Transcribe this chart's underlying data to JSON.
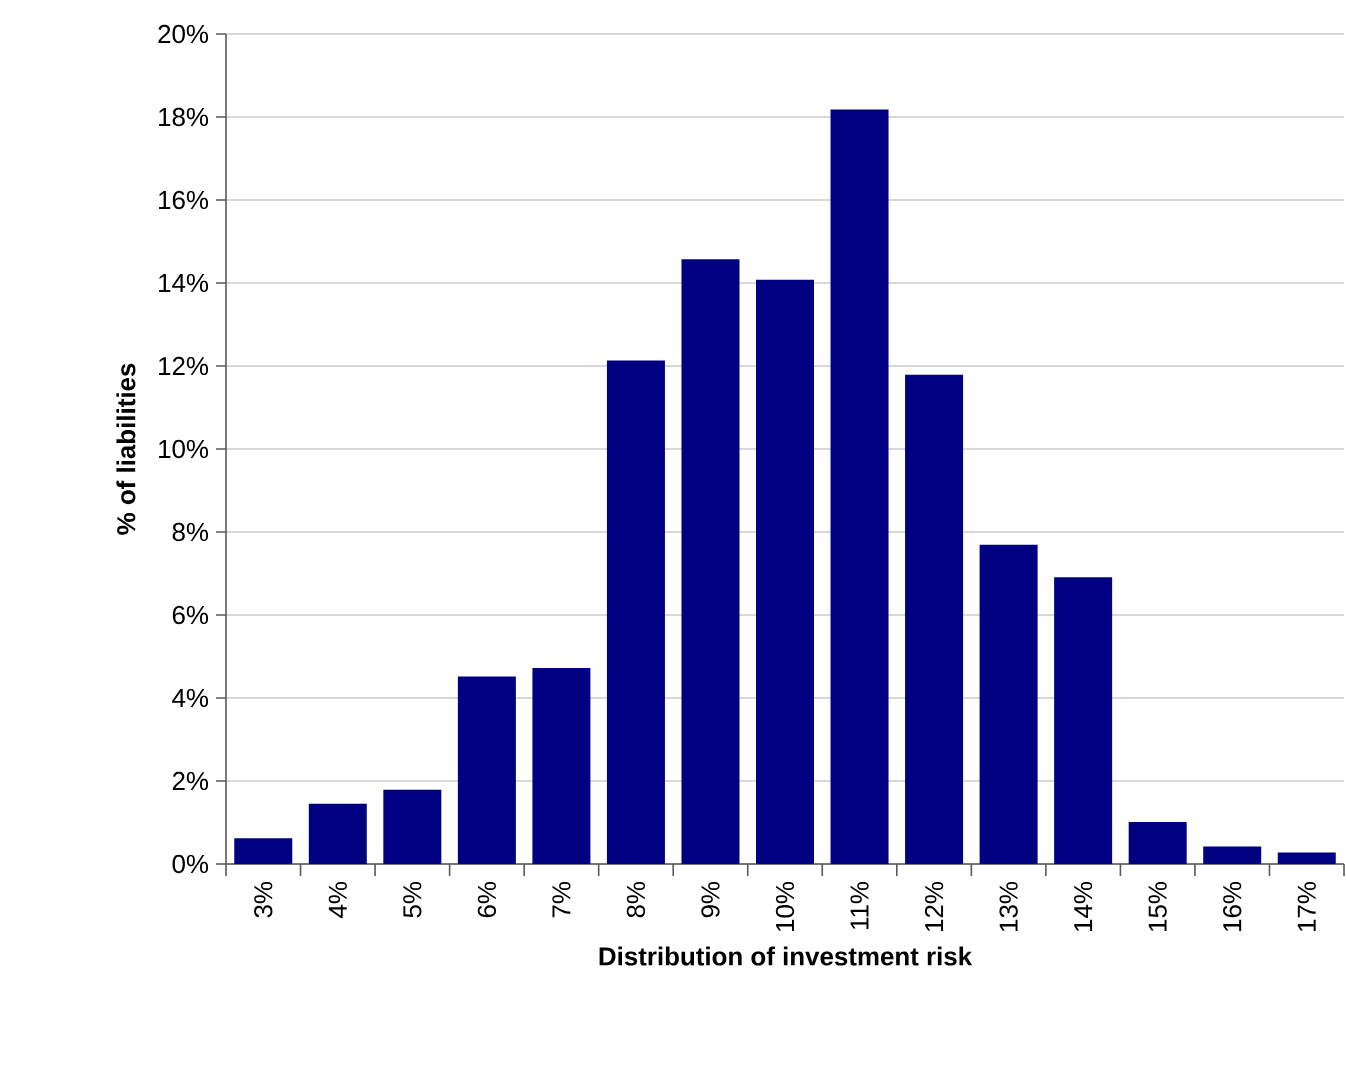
{
  "chart_data": {
    "type": "bar",
    "xlabel": "Distribution of investment risk",
    "ylabel": "% of liabilities",
    "categories": [
      "3%",
      "4%",
      "5%",
      "6%",
      "7%",
      "8%",
      "9%",
      "10%",
      "11%",
      "12%",
      "13%",
      "14%",
      "15%",
      "16%",
      "17%"
    ],
    "values": [
      0.62,
      1.45,
      1.79,
      4.52,
      4.72,
      12.13,
      14.57,
      14.08,
      18.18,
      11.79,
      7.69,
      6.91,
      1.01,
      0.42,
      0.28
    ],
    "color": "#000080",
    "ylim": [
      0,
      20
    ],
    "yticks": [
      {
        "value": 0,
        "label": "0%"
      },
      {
        "value": 2,
        "label": "2%"
      },
      {
        "value": 4,
        "label": "4%"
      },
      {
        "value": 6,
        "label": "6%"
      },
      {
        "value": 8,
        "label": "8%"
      },
      {
        "value": 10,
        "label": "10%"
      },
      {
        "value": 12,
        "label": "12%"
      },
      {
        "value": 14,
        "label": "14%"
      },
      {
        "value": 16,
        "label": "16%"
      },
      {
        "value": 18,
        "label": "18%"
      },
      {
        "value": 20,
        "label": "20%"
      }
    ],
    "grid": "y"
  }
}
